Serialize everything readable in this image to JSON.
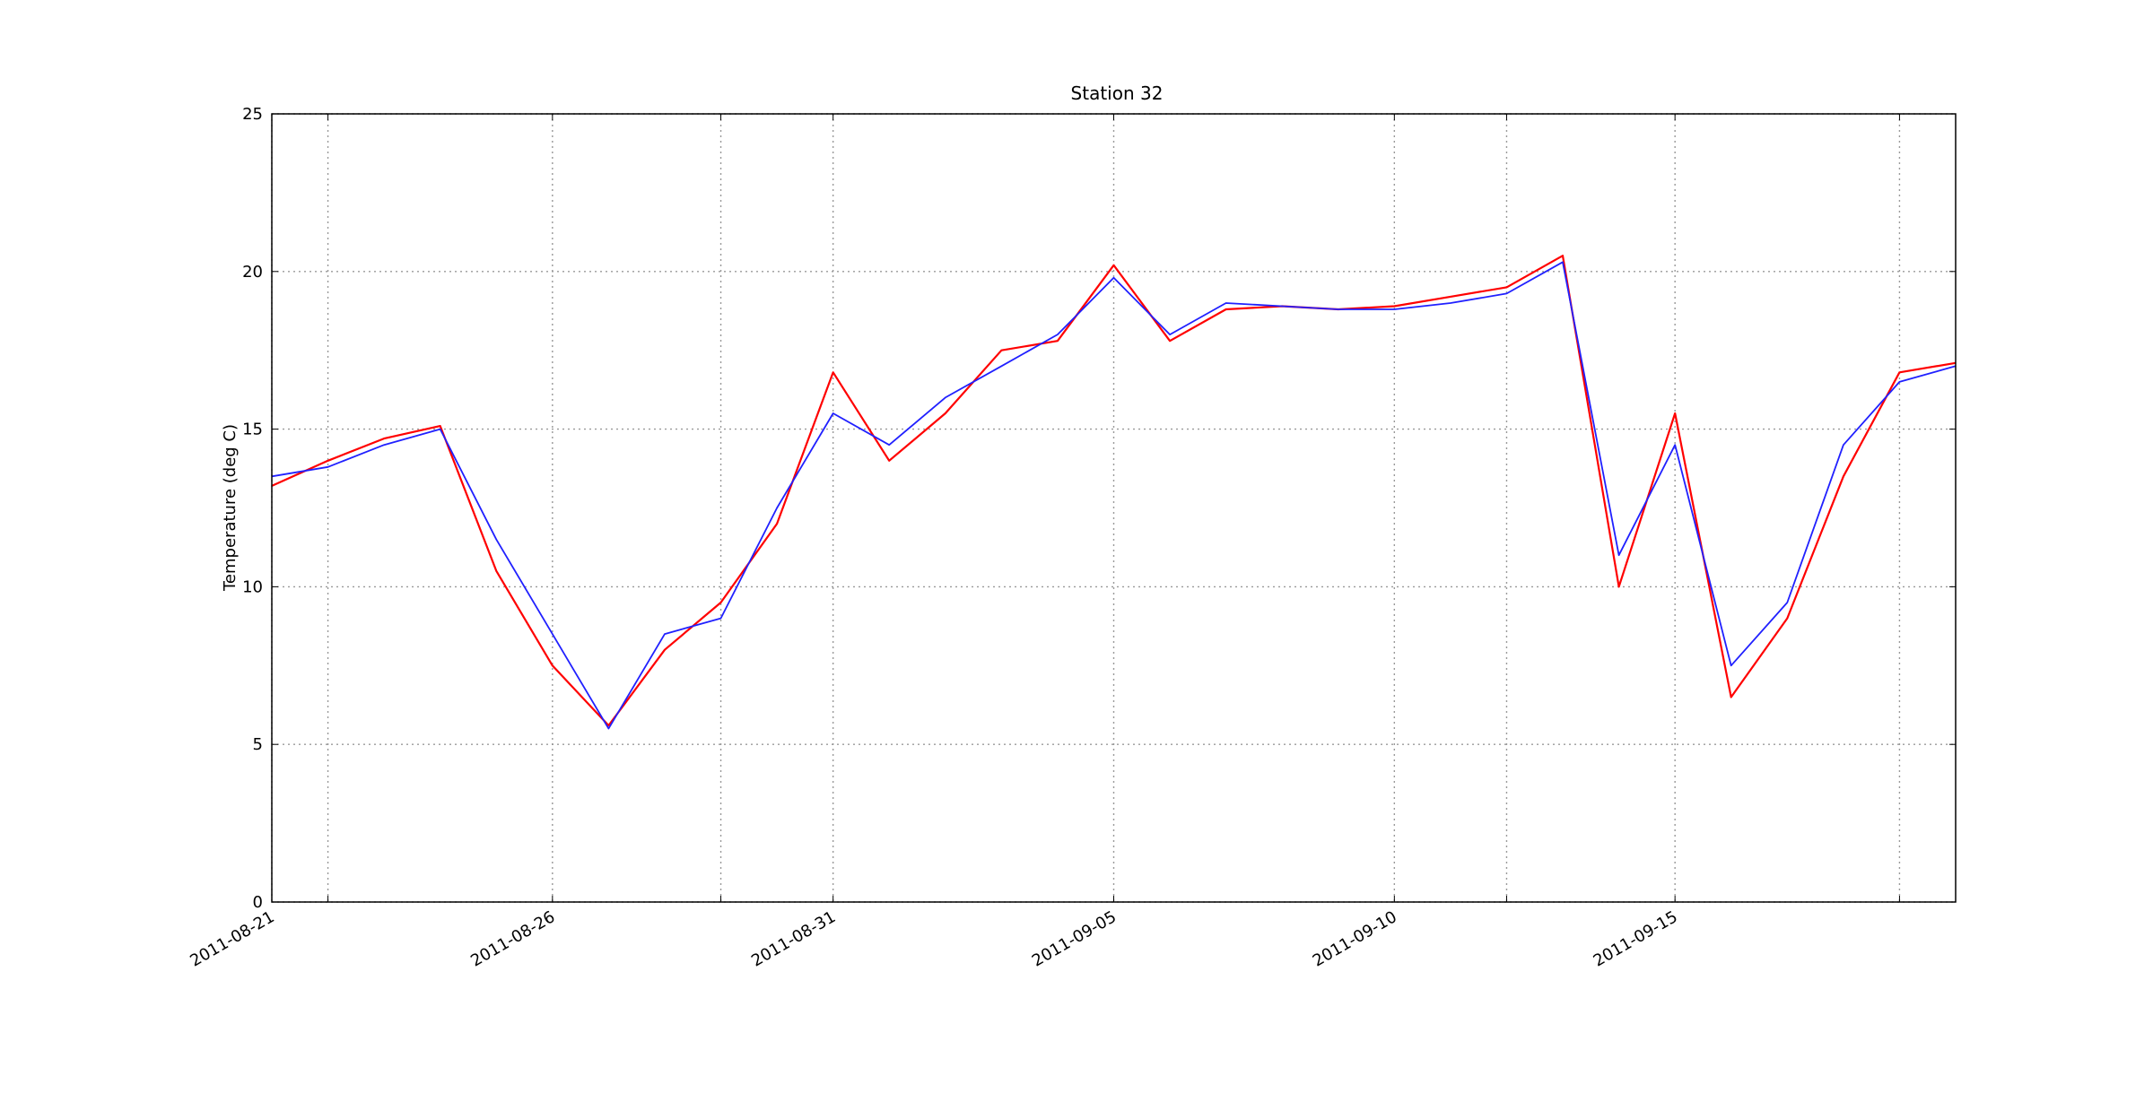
{
  "chart_data": {
    "type": "line",
    "title": "Station 32",
    "y_label": "Temperature (deg C)",
    "x": [
      "2011-08-21",
      "2011-08-22",
      "2011-08-23",
      "2011-08-24",
      "2011-08-25",
      "2011-08-26",
      "2011-08-27",
      "2011-08-28",
      "2011-08-29",
      "2011-08-30",
      "2011-08-31",
      "2011-09-01",
      "2011-09-02",
      "2011-09-03",
      "2011-09-04",
      "2011-09-05",
      "2011-09-06",
      "2011-09-07",
      "2011-09-08",
      "2011-09-09",
      "2011-09-10",
      "2011-09-11",
      "2011-09-12",
      "2011-09-13",
      "2011-09-14",
      "2011-09-15",
      "2011-09-16",
      "2011-09-17",
      "2011-09-18",
      "2011-09-19",
      "2011-09-20"
    ],
    "series": [
      {
        "color": "#ff0000",
        "values": [
          13.2,
          14.0,
          14.7,
          15.1,
          10.5,
          7.5,
          5.6,
          8.0,
          9.5,
          12.0,
          16.8,
          14.0,
          15.5,
          17.5,
          17.8,
          20.2,
          17.8,
          18.8,
          18.9,
          18.8,
          18.9,
          19.2,
          19.5,
          20.5,
          10.0,
          15.5,
          6.5,
          9.0,
          13.5,
          16.8,
          17.1
        ]
      },
      {
        "color": "#2020ff",
        "values": [
          13.5,
          13.8,
          14.5,
          15.0,
          11.5,
          8.5,
          5.5,
          8.5,
          9.0,
          12.5,
          15.5,
          14.5,
          16.0,
          17.0,
          18.0,
          19.8,
          18.0,
          19.0,
          18.9,
          18.8,
          18.8,
          19.0,
          19.3,
          20.3,
          11.0,
          14.5,
          7.5,
          9.5,
          14.5,
          16.5,
          17.0
        ]
      }
    ],
    "xlim": [
      "2011-08-21",
      "2011-09-20"
    ],
    "xticks": [
      {
        "value": "2011-08-21",
        "label": "2011-08-21"
      },
      {
        "value": "2011-08-22",
        "label": null
      },
      {
        "value": "2011-08-26",
        "label": "2011-08-26"
      },
      {
        "value": "2011-08-29",
        "label": null
      },
      {
        "value": "2011-08-31",
        "label": "2011-08-31"
      },
      {
        "value": "2011-09-05",
        "label": "2011-09-05"
      },
      {
        "value": "2011-09-10",
        "label": "2011-09-10"
      },
      {
        "value": "2011-09-12",
        "label": null
      },
      {
        "value": "2011-09-15",
        "label": "2011-09-15"
      },
      {
        "value": "2011-09-19",
        "label": null
      }
    ],
    "ylim": [
      0,
      25
    ],
    "yticks": [
      0,
      5,
      10,
      15,
      20,
      25
    ],
    "grid": true
  }
}
